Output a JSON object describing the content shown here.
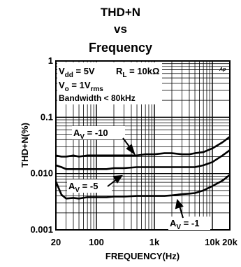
{
  "chart_data": {
    "type": "line",
    "title_lines": [
      "THD+N",
      "vs",
      "Frequency"
    ],
    "xlabel": "FREQUENCY(Hz)",
    "ylabel": "THD+N(%)",
    "x_scale": "log",
    "y_scale": "log",
    "xlim": [
      20,
      20000
    ],
    "ylim": [
      0.001,
      1
    ],
    "x_ticks": [
      {
        "value": 20,
        "label": "20"
      },
      {
        "value": 100,
        "label": "100"
      },
      {
        "value": 1000,
        "label": "1k"
      },
      {
        "value": 10000,
        "label": "10k"
      },
      {
        "value": 20000,
        "label": "20k"
      }
    ],
    "y_ticks": [
      {
        "value": 1,
        "label": "1"
      },
      {
        "value": 0.1,
        "label": "0.1"
      },
      {
        "value": 0.01,
        "label": "0.010"
      },
      {
        "value": 0.001,
        "label": "0.001"
      }
    ],
    "grid": true,
    "conditions": {
      "vdd": {
        "base": "V",
        "sub": "dd",
        "tail": " = 5V"
      },
      "rl": {
        "base": "R",
        "sub": "L",
        "tail": " = 10kΩ"
      },
      "vo": {
        "base": "V",
        "sub": "o",
        "tail": " = 1V",
        "sub2": "rms"
      },
      "bw": "Bandwidth < 80kHz"
    },
    "watermark": "Ap",
    "series": [
      {
        "name": "AV = -10",
        "label": {
          "base": "A",
          "sub": "V",
          "tail": " = -10"
        },
        "x": [
          20,
          25,
          30,
          40,
          50,
          70,
          100,
          150,
          200,
          300,
          500,
          700,
          1000,
          1500,
          2000,
          3000,
          4000,
          5000,
          7000,
          10000,
          15000,
          20000
        ],
        "y": [
          0.021,
          0.02,
          0.02,
          0.021,
          0.02,
          0.021,
          0.021,
          0.021,
          0.021,
          0.021,
          0.021,
          0.022,
          0.022,
          0.023,
          0.023,
          0.022,
          0.022,
          0.023,
          0.024,
          0.028,
          0.036,
          0.045
        ]
      },
      {
        "name": "AV = -5",
        "label": {
          "base": "A",
          "sub": "V",
          "tail": " = -5"
        },
        "x": [
          20,
          25,
          30,
          40,
          50,
          70,
          100,
          150,
          200,
          300,
          500,
          700,
          1000,
          1500,
          2000,
          3000,
          4000,
          5000,
          7000,
          10000,
          15000,
          20000
        ],
        "y": [
          0.014,
          0.013,
          0.012,
          0.012,
          0.012,
          0.012,
          0.012,
          0.012,
          0.0125,
          0.0125,
          0.013,
          0.013,
          0.013,
          0.013,
          0.013,
          0.013,
          0.013,
          0.013,
          0.014,
          0.016,
          0.021,
          0.026
        ]
      },
      {
        "name": "AV = -1",
        "label": {
          "base": "A",
          "sub": "V",
          "tail": " = -1"
        },
        "x": [
          20,
          25,
          30,
          40,
          50,
          70,
          100,
          150,
          200,
          300,
          500,
          700,
          1000,
          1500,
          2000,
          3000,
          4000,
          5000,
          7000,
          10000,
          15000,
          20000
        ],
        "y": [
          0.0072,
          0.0042,
          0.0036,
          0.0037,
          0.0036,
          0.0038,
          0.0038,
          0.0038,
          0.0039,
          0.0039,
          0.004,
          0.004,
          0.004,
          0.004,
          0.0041,
          0.0043,
          0.0044,
          0.0045,
          0.005,
          0.006,
          0.0075,
          0.0095
        ]
      }
    ]
  }
}
